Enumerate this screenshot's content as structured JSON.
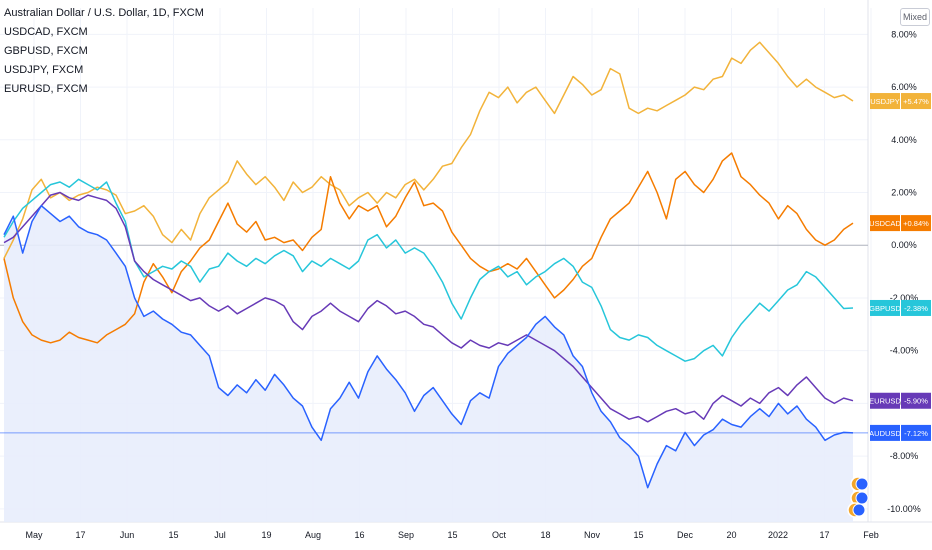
{
  "legend": {
    "main": "Australian Dollar / U.S. Dollar, 1D, FXCM",
    "items": [
      "USDCAD, FXCM",
      "GBPUSD, FXCM",
      "USDJPY, FXCM",
      "EURUSD, FXCM"
    ]
  },
  "scale_mode": "Mixed",
  "chart_data": {
    "type": "line",
    "y_unit": "%",
    "ylim": [
      -10.5,
      9.0
    ],
    "y_ticks": [
      8,
      6,
      4,
      2,
      0,
      -2,
      -4,
      -6,
      -8,
      -10
    ],
    "y_tick_labels": [
      "8.00%",
      "6.00%",
      "4.00%",
      "2.00%",
      "0.00%",
      "-2.00%",
      "-4.00%",
      "-6.00%",
      "-8.00%",
      "-10.00%"
    ],
    "x_tick_labels": [
      "May",
      "17",
      "Jun",
      "15",
      "Jul",
      "19",
      "Aug",
      "16",
      "Sep",
      "15",
      "Oct",
      "18",
      "Nov",
      "15",
      "Dec",
      "20",
      "2022",
      "17",
      "Feb"
    ],
    "grid": true,
    "series": [
      {
        "name": "USDJPY",
        "label": "USDJPY",
        "value_label": "+5.47%",
        "color": "#f2b33a",
        "values": [
          -0.5,
          0.2,
          1.0,
          2.1,
          2.5,
          1.8,
          2.0,
          1.7,
          1.9,
          2.0,
          2.2,
          2.1,
          1.9,
          1.2,
          1.3,
          1.5,
          1.1,
          0.4,
          0.1,
          0.6,
          0.2,
          1.2,
          1.8,
          2.1,
          2.4,
          3.2,
          2.7,
          2.3,
          2.6,
          2.2,
          1.7,
          2.4,
          2.0,
          2.2,
          2.6,
          2.3,
          2.1,
          1.5,
          1.8,
          2.0,
          1.6,
          2.0,
          1.8,
          2.3,
          2.5,
          2.1,
          2.5,
          3.0,
          3.1,
          3.7,
          4.2,
          5.1,
          5.8,
          5.6,
          6.0,
          5.4,
          5.8,
          6.0,
          5.5,
          5.0,
          5.7,
          6.4,
          6.1,
          5.7,
          5.9,
          6.7,
          6.5,
          5.2,
          5.0,
          5.2,
          5.1,
          5.3,
          5.5,
          5.7,
          6.0,
          5.9,
          6.3,
          6.4,
          7.1,
          6.9,
          7.4,
          7.7,
          7.3,
          6.9,
          6.4,
          6.0,
          6.3,
          6.0,
          5.8,
          5.6,
          5.7,
          5.47
        ]
      },
      {
        "name": "USDCAD",
        "label": "USDCAD",
        "value_label": "+0.84%",
        "color": "#f57c00",
        "values": [
          -0.5,
          -2.0,
          -2.9,
          -3.4,
          -3.6,
          -3.7,
          -3.6,
          -3.3,
          -3.5,
          -3.6,
          -3.7,
          -3.4,
          -3.2,
          -3.0,
          -2.6,
          -1.4,
          -0.7,
          -1.2,
          -1.8,
          -1.0,
          -0.6,
          -0.1,
          0.2,
          0.9,
          1.6,
          0.8,
          0.5,
          0.9,
          0.2,
          0.3,
          0.1,
          0.2,
          -0.2,
          0.3,
          0.6,
          2.6,
          1.6,
          1.0,
          1.5,
          1.3,
          1.5,
          0.7,
          1.1,
          1.8,
          2.4,
          1.5,
          1.6,
          1.3,
          0.5,
          0.0,
          -0.5,
          -0.8,
          -1.0,
          -0.9,
          -0.7,
          -0.9,
          -0.5,
          -1.0,
          -1.5,
          -2.0,
          -1.7,
          -1.3,
          -0.8,
          -0.5,
          0.3,
          1.0,
          1.3,
          1.6,
          2.2,
          2.8,
          2.0,
          1.0,
          2.5,
          2.8,
          2.3,
          2.0,
          2.5,
          3.2,
          3.5,
          2.6,
          2.3,
          1.9,
          1.6,
          1.0,
          1.5,
          1.2,
          0.6,
          0.2,
          0.0,
          0.2,
          0.6,
          0.84
        ]
      },
      {
        "name": "GBPUSD",
        "label": "GBPUSD",
        "value_label": "-2.38%",
        "color": "#26c6da",
        "values": [
          0.3,
          0.9,
          1.4,
          1.7,
          2.0,
          2.3,
          2.4,
          2.2,
          2.5,
          2.3,
          2.1,
          2.4,
          1.6,
          0.9,
          -0.6,
          -1.2,
          -1.0,
          -0.8,
          -0.9,
          -0.6,
          -0.8,
          -1.4,
          -0.9,
          -0.8,
          -0.3,
          -0.6,
          -0.8,
          -0.5,
          -0.7,
          -0.4,
          -0.2,
          -0.4,
          -1.0,
          -0.6,
          -0.8,
          -0.5,
          -0.7,
          -0.9,
          -0.6,
          0.2,
          0.4,
          -0.1,
          0.2,
          -0.3,
          -0.1,
          -0.3,
          -0.8,
          -1.4,
          -2.2,
          -2.8,
          -2.0,
          -1.3,
          -1.0,
          -0.8,
          -1.2,
          -1.0,
          -1.5,
          -1.2,
          -1.0,
          -0.7,
          -0.5,
          -0.8,
          -1.4,
          -1.6,
          -2.3,
          -3.2,
          -3.5,
          -3.6,
          -3.4,
          -3.5,
          -3.8,
          -4.0,
          -4.2,
          -4.4,
          -4.3,
          -4.0,
          -3.8,
          -4.2,
          -3.5,
          -3.0,
          -2.6,
          -2.2,
          -2.5,
          -2.1,
          -1.7,
          -1.5,
          -1.0,
          -1.2,
          -1.6,
          -2.0,
          -2.4,
          -2.38
        ]
      },
      {
        "name": "EURUSD",
        "label": "EURUSD",
        "value_label": "-5.90%",
        "color": "#673ab7",
        "values": [
          0.1,
          0.3,
          0.7,
          1.1,
          1.5,
          1.9,
          2.0,
          1.8,
          1.7,
          1.9,
          1.8,
          1.7,
          1.4,
          0.7,
          -0.6,
          -1.0,
          -1.3,
          -1.5,
          -1.7,
          -1.9,
          -2.1,
          -2.0,
          -2.3,
          -2.5,
          -2.3,
          -2.6,
          -2.4,
          -2.2,
          -2.0,
          -2.1,
          -2.3,
          -2.9,
          -3.2,
          -2.7,
          -2.5,
          -2.2,
          -2.5,
          -2.7,
          -2.9,
          -2.4,
          -2.1,
          -2.3,
          -2.6,
          -2.5,
          -2.7,
          -3.0,
          -3.1,
          -3.4,
          -3.7,
          -3.9,
          -3.6,
          -3.8,
          -3.9,
          -3.7,
          -3.8,
          -3.6,
          -3.4,
          -3.6,
          -3.8,
          -4.0,
          -4.3,
          -4.6,
          -5.0,
          -5.4,
          -5.8,
          -6.2,
          -6.4,
          -6.6,
          -6.5,
          -6.7,
          -6.5,
          -6.3,
          -6.2,
          -6.4,
          -6.3,
          -6.6,
          -6.0,
          -5.7,
          -5.9,
          -6.1,
          -5.8,
          -6.0,
          -5.6,
          -5.4,
          -5.7,
          -5.3,
          -5.0,
          -5.4,
          -5.8,
          -6.0,
          -5.8,
          -5.9
        ]
      },
      {
        "name": "AUDUSD",
        "label": "AUDUSD",
        "value_label": "-7.12%",
        "color": "#2962ff",
        "fill": "#e8edfc",
        "values": [
          0.4,
          1.1,
          -0.3,
          0.9,
          1.5,
          1.2,
          0.9,
          1.1,
          0.7,
          0.5,
          0.4,
          0.2,
          -0.3,
          -0.8,
          -2.0,
          -2.7,
          -2.5,
          -2.8,
          -3.0,
          -3.3,
          -3.4,
          -3.8,
          -4.2,
          -5.4,
          -5.7,
          -5.3,
          -5.6,
          -5.1,
          -5.5,
          -4.9,
          -5.3,
          -5.8,
          -6.1,
          -6.9,
          -7.4,
          -6.2,
          -5.8,
          -5.2,
          -5.8,
          -4.8,
          -4.2,
          -4.7,
          -5.1,
          -5.6,
          -6.3,
          -5.7,
          -5.4,
          -5.9,
          -6.4,
          -6.8,
          -5.9,
          -5.6,
          -5.8,
          -4.6,
          -4.1,
          -3.8,
          -3.5,
          -3.0,
          -2.7,
          -3.1,
          -3.4,
          -4.2,
          -4.6,
          -5.6,
          -6.3,
          -6.7,
          -7.3,
          -7.6,
          -8.0,
          -9.2,
          -8.3,
          -7.6,
          -7.8,
          -7.1,
          -7.6,
          -7.2,
          -7.0,
          -6.6,
          -6.8,
          -6.9,
          -6.5,
          -6.2,
          -6.5,
          -6.0,
          -6.4,
          -6.1,
          -6.6,
          -6.9,
          -7.4,
          -7.2,
          -7.1,
          -7.12
        ]
      }
    ]
  }
}
